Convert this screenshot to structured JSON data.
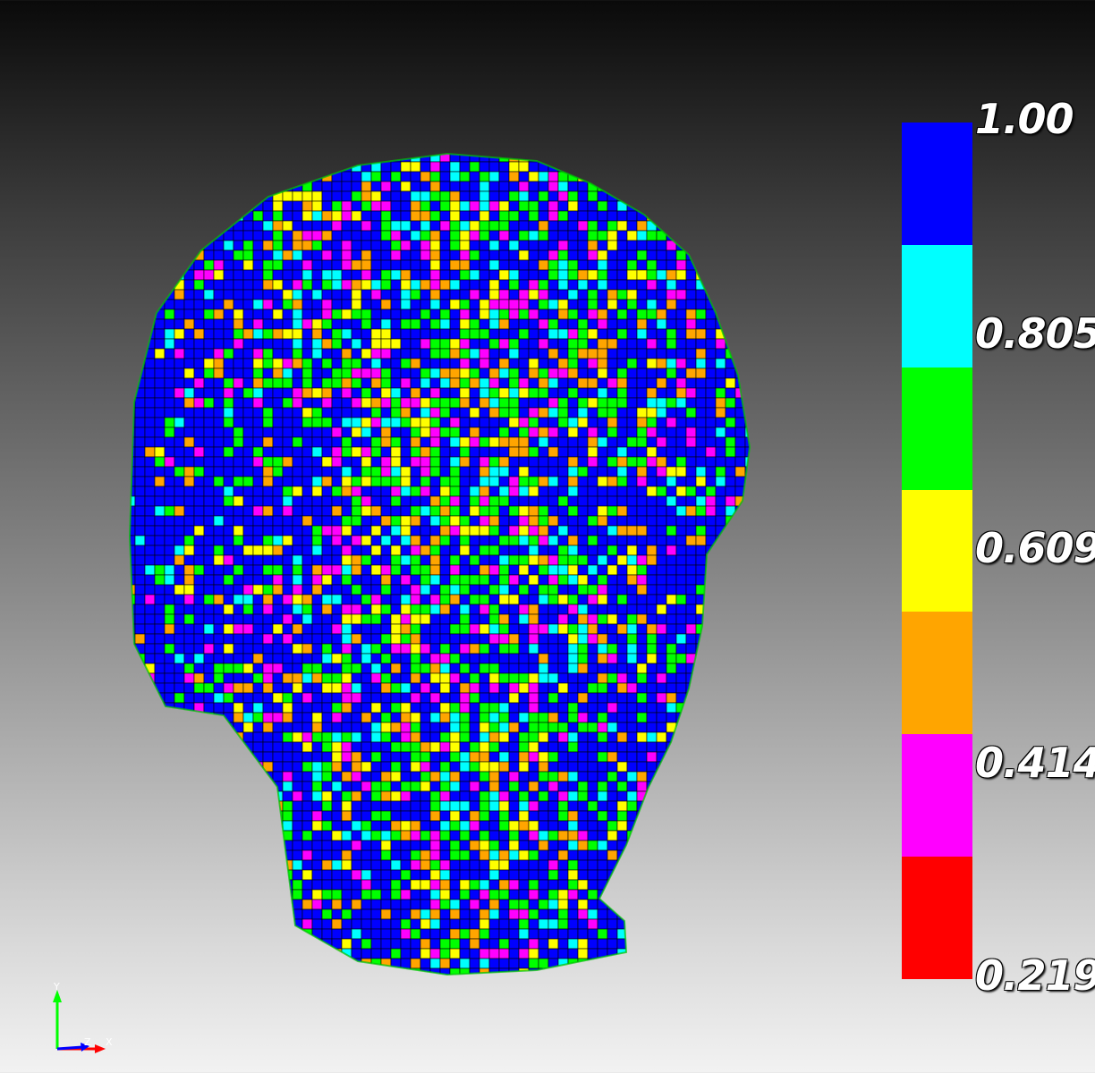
{
  "viewport": {
    "mesh_palette": [
      "#0000ff",
      "#0000ff",
      "#0000ff",
      "#00ffff",
      "#00ff00",
      "#00ff00",
      "#ffff00",
      "#ffa500",
      "#ff00ff"
    ],
    "mesh_base_color": "#0000c8",
    "mesh_edge_color": "#000000"
  },
  "colorbar": {
    "bands": [
      "#0000ff",
      "#00ffff",
      "#00ff00",
      "#ffff00",
      "#ffa500",
      "#ff00ff",
      "#ff0000"
    ],
    "labels": {
      "max": "1.00",
      "l2": "0.805",
      "l3": "0.609",
      "l4": "0.414",
      "min": "0.219"
    }
  },
  "axes": {
    "y_label": "Y",
    "z_label": "Z",
    "x_label": "X",
    "y_color": "#00ff00",
    "x_color": "#ff0000",
    "z_color": "#0000ff"
  }
}
